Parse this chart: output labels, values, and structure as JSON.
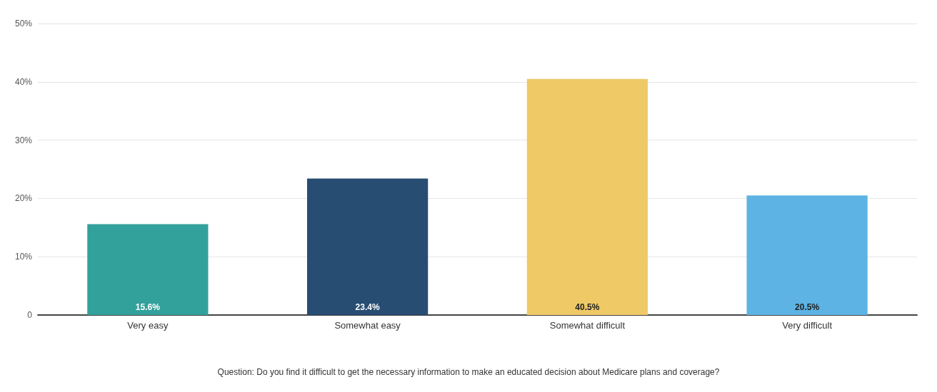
{
  "chart_data": {
    "type": "bar",
    "categories": [
      "Very easy",
      "Somewhat easy",
      "Somewhat difficult",
      "Very difficult"
    ],
    "values": [
      15.6,
      23.4,
      40.5,
      20.5
    ],
    "colors": [
      "#33a19b",
      "#284d73",
      "#eec966",
      "#5db3e3"
    ],
    "value_labels": [
      "15.6%",
      "23.4%",
      "40.5%",
      "20.5%"
    ],
    "ylim": [
      0,
      50
    ],
    "yticks": [
      {
        "value": 0,
        "label": "0"
      },
      {
        "value": 10,
        "label": "10%"
      },
      {
        "value": 20,
        "label": "20%"
      },
      {
        "value": 30,
        "label": "30%"
      },
      {
        "value": 40,
        "label": "40%"
      },
      {
        "value": 50,
        "label": "50%"
      }
    ],
    "grid": "y",
    "annotations": [
      "Question: Do you find it difficult to get the necessary information to make an educated decision about Medicare plans and coverage?"
    ]
  }
}
